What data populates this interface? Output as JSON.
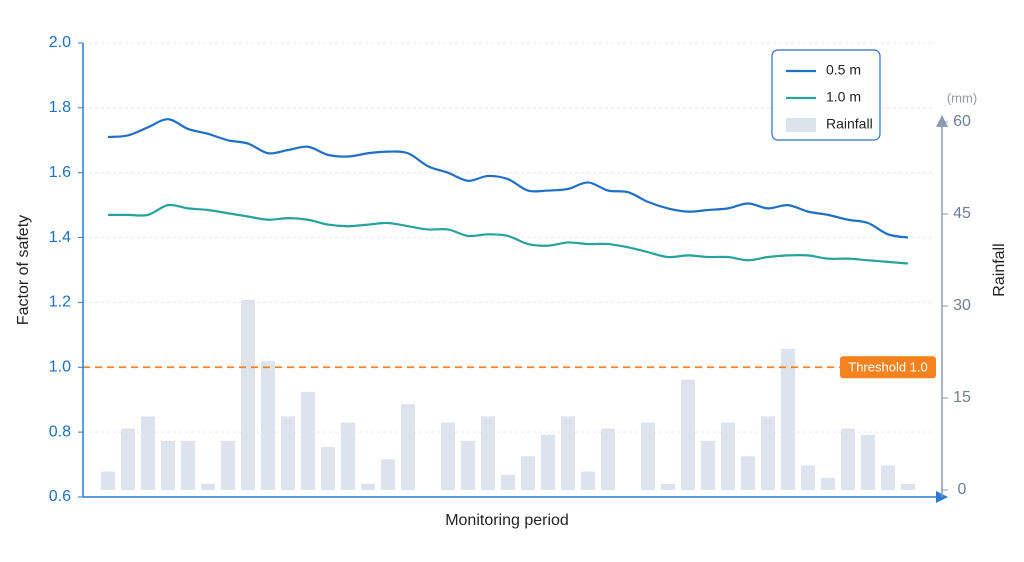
{
  "chart_data": {
    "type": "line",
    "x": [
      0,
      1,
      2,
      3,
      4,
      5,
      6,
      7,
      8,
      9,
      10,
      11,
      12,
      13,
      14,
      15,
      16,
      17,
      18,
      19,
      20,
      21,
      22,
      23,
      24,
      25,
      26,
      27,
      28,
      29,
      30,
      31,
      32,
      33,
      34,
      35,
      36,
      37,
      38,
      39,
      40
    ],
    "xlim": [
      -1.25,
      41.2
    ],
    "ylim": [
      0.6,
      2.0
    ],
    "yticks": [
      {
        "value": 0.6,
        "label": "0.6"
      },
      {
        "value": 0.8,
        "label": "0.8"
      },
      {
        "value": 1,
        "label": "1.0"
      },
      {
        "value": 1.2,
        "label": "1.2"
      },
      {
        "value": 1.4,
        "label": "1.4"
      },
      {
        "value": 1.6,
        "label": "1.6"
      },
      {
        "value": 1.8,
        "label": "1.8"
      },
      {
        "value": 2,
        "label": "2.0"
      }
    ],
    "y2lim": [
      0,
      60
    ],
    "y2ticks": [
      0,
      15,
      30,
      45,
      60
    ],
    "ylabel": "Factor of safety",
    "y2label": "Rainfall",
    "y2unit": "(mm)",
    "xlabel": "Monitoring period",
    "grid": true,
    "legend": "upper right",
    "series": [
      {
        "name": "0.5 m",
        "color": "#1f6fc5",
        "values": [
          1.71,
          1.715,
          1.74,
          1.765,
          1.735,
          1.72,
          1.7,
          1.69,
          1.66,
          1.67,
          1.68,
          1.655,
          1.65,
          1.66,
          1.665,
          1.66,
          1.62,
          1.6,
          1.575,
          1.59,
          1.58,
          1.545,
          1.545,
          1.55,
          1.57,
          1.545,
          1.54,
          1.51,
          1.49,
          1.48,
          1.485,
          1.49,
          1.505,
          1.49,
          1.5,
          1.48,
          1.47,
          1.455,
          1.445,
          1.41,
          1.4
        ]
      },
      {
        "name": "1.0 m",
        "color": "#26a39a",
        "values": [
          1.47,
          1.47,
          1.47,
          1.5,
          1.49,
          1.485,
          1.475,
          1.465,
          1.455,
          1.46,
          1.455,
          1.44,
          1.435,
          1.44,
          1.445,
          1.435,
          1.425,
          1.425,
          1.405,
          1.41,
          1.405,
          1.38,
          1.375,
          1.385,
          1.38,
          1.38,
          1.37,
          1.355,
          1.34,
          1.345,
          1.34,
          1.34,
          1.33,
          1.34,
          1.345,
          1.345,
          1.335,
          1.335,
          1.33,
          1.325,
          1.32
        ]
      },
      {
        "name": "Rainfall",
        "type": "bar",
        "axis": "y2",
        "color": "#dde3ec",
        "values": [
          3,
          10,
          12,
          8,
          8,
          1,
          8,
          31,
          21,
          12,
          16,
          7,
          11,
          1,
          5,
          14,
          0,
          11,
          8,
          12,
          2.5,
          5.5,
          9,
          12,
          3,
          10,
          0,
          11,
          1,
          18,
          8,
          11,
          5.5,
          12,
          23,
          4,
          2,
          10,
          9,
          4,
          1
        ]
      }
    ],
    "threshold": {
      "value": 1,
      "label": "Threshold 1.0",
      "color": "#f5821f"
    }
  }
}
